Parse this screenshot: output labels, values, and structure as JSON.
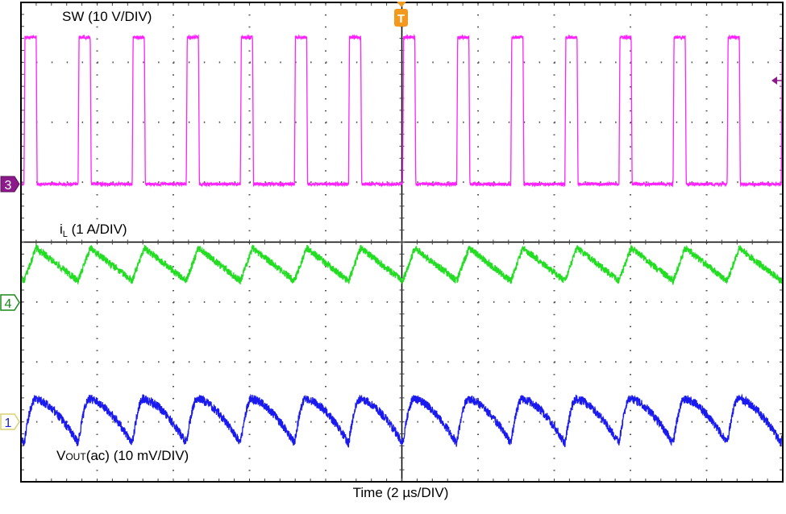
{
  "chart_data": {
    "type": "line",
    "title": "",
    "xlabel": "Time (2 µs/DIV)",
    "x_unit": "µs",
    "xlim": [
      0,
      20
    ],
    "divisions": {
      "horizontal": 10,
      "vertical": 8
    },
    "grid": true,
    "trigger_time_us": 10,
    "switching_period_us": 1.42,
    "on_time_us": 0.32,
    "rising_edges_us": [
      0.08,
      1.5,
      2.92,
      4.34,
      5.76,
      7.18,
      8.6,
      10.02,
      11.44,
      12.86,
      14.28,
      15.7,
      17.12,
      18.54,
      19.96
    ],
    "series": [
      {
        "name": "SW (10 V/DIV)",
        "channel": "3",
        "unit": "V",
        "scale_per_div": 10,
        "low": 0,
        "high": 24.5,
        "color": "#ff22ff"
      },
      {
        "name": "iL (1 A/DIV)",
        "channel": "4",
        "unit": "A",
        "scale_per_div": 1,
        "valley": 0.36,
        "peak": 0.91,
        "color": "#22dd22"
      },
      {
        "name": "VOUT(ac) (10 mV/DIV)",
        "channel": "1",
        "unit": "mV",
        "scale_per_div": 10,
        "valley": -3.6,
        "peak": 3.8,
        "color": "#1a1aee"
      }
    ]
  },
  "labels": {
    "sw": "SW (10 V/DIV)",
    "il_main": "i",
    "il_sub": "L",
    "il_rest": " (1 A/DIV)",
    "vout_main": "V",
    "vout_sub": "OUT",
    "vout_rest": "(ac) (10 mV/DIV)",
    "time": "Time (2 µs/DIV)"
  },
  "markers": {
    "ch3": "3",
    "ch4": "4",
    "ch1": "1",
    "trigger": "T"
  },
  "colors": {
    "ch3_marker": "#8b1a8b",
    "ch4_marker": "#1a8a1a",
    "ch1_marker": "#2222cc",
    "trigger": "#f39a1e"
  }
}
